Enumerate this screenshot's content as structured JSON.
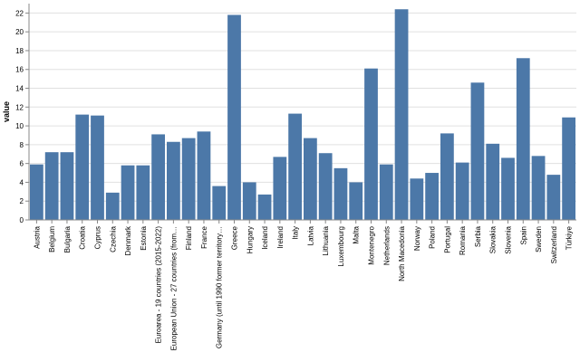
{
  "chart_data": {
    "type": "bar",
    "title": "",
    "xlabel": "",
    "ylabel": "value",
    "ylim": [
      0,
      23
    ],
    "yticks": [
      0,
      2,
      4,
      6,
      8,
      10,
      12,
      14,
      16,
      18,
      20,
      22
    ],
    "grid": true,
    "bar_color": "#4c78a8",
    "grid_color": "#e0e0e0",
    "axis_color": "#888888",
    "categories": [
      "Austria",
      "Belgium",
      "Bulgaria",
      "Croatia",
      "Cyprus",
      "Czechia",
      "Denmark",
      "Estonia",
      "Euroarea - 19 countries  (2015-2022)",
      "European Union - 27 countries (from…",
      "Finland",
      "France",
      "Germany (until 1990 former territory…",
      "Greece",
      "Hungary",
      "Iceland",
      "Ireland",
      "Italy",
      "Latvia",
      "Lithuania",
      "Luxembourg",
      "Malta",
      "Montenegro",
      "Netherlands",
      "North Macedonia",
      "Norway",
      "Poland",
      "Portugal",
      "Romania",
      "Serbia",
      "Slovakia",
      "Slovenia",
      "Spain",
      "Sweden",
      "Switzerland",
      "Türkiye"
    ],
    "values": [
      5.9,
      7.2,
      7.2,
      11.2,
      11.1,
      2.9,
      5.8,
      5.8,
      9.1,
      8.3,
      8.7,
      9.4,
      3.6,
      21.8,
      4.0,
      2.7,
      6.7,
      11.3,
      8.7,
      7.1,
      5.5,
      4.0,
      16.1,
      5.9,
      22.4,
      4.4,
      5.0,
      9.2,
      6.1,
      14.6,
      8.1,
      6.6,
      17.2,
      6.8,
      4.8,
      10.9
    ]
  }
}
